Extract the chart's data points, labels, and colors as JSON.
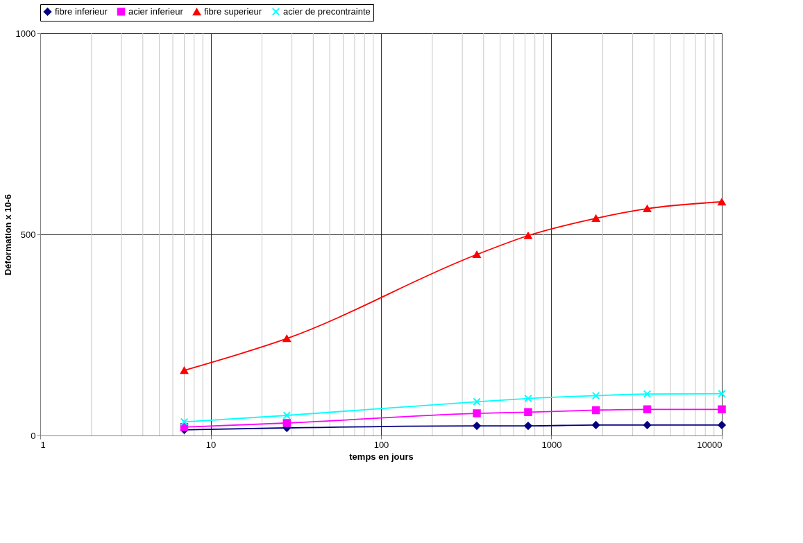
{
  "chart_data": {
    "type": "line",
    "xlabel": "temps en jours",
    "ylabel": "Déformation x 10-6",
    "x": [
      7,
      28,
      365,
      730,
      1825,
      3650,
      10000
    ],
    "series": [
      {
        "name": "fibre inferieur",
        "color": "#000080",
        "marker": "diamond",
        "values": [
          14,
          19,
          24,
          24,
          26,
          26,
          26
        ]
      },
      {
        "name": "acier inferieur",
        "color": "#ff00ff",
        "marker": "square",
        "values": [
          21,
          31,
          55,
          58,
          63,
          65,
          65
        ]
      },
      {
        "name": "fibre superieur",
        "color": "#ff0000",
        "marker": "triangle",
        "values": [
          162,
          241,
          450,
          497,
          540,
          564,
          581
        ]
      },
      {
        "name": "acier de precontrainte",
        "color": "#00ffff",
        "marker": "cross",
        "values": [
          34,
          50,
          84,
          92,
          99,
          103,
          104
        ]
      }
    ],
    "log": "x",
    "xlim": [
      1,
      10000
    ],
    "xticks": [
      1,
      10,
      100,
      1000,
      10000
    ],
    "ylim": [
      0,
      1000
    ],
    "yticks": [
      0,
      500,
      1000
    ],
    "grid": true,
    "legend": "top"
  }
}
